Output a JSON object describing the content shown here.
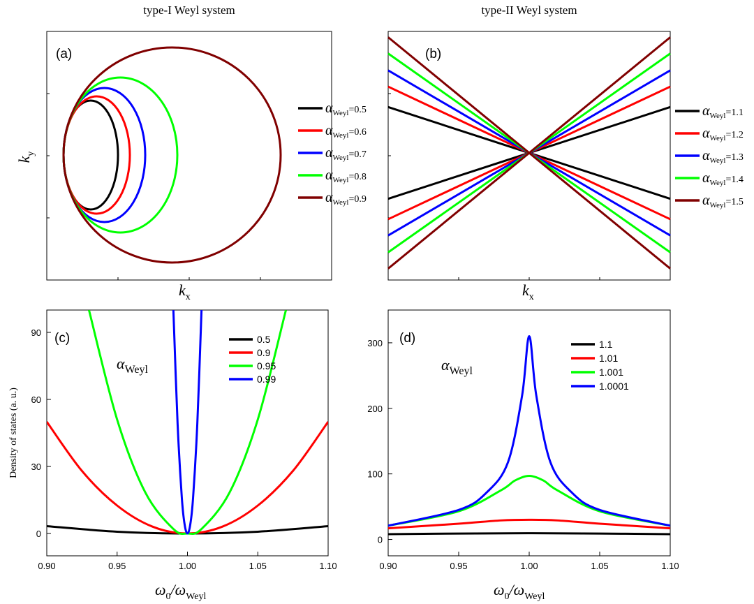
{
  "column_titles": {
    "left": "type-I Weyl system",
    "right": "type-II Weyl system"
  },
  "colors": {
    "black": "#000000",
    "red": "#ff0000",
    "blue": "#0000ff",
    "green": "#00ff00",
    "darkred": "#800000",
    "navy": "#000080"
  },
  "chart_data": [
    {
      "panel": "(a)",
      "type": "line",
      "curve_kind": "ellipse",
      "xlabel_main": "k",
      "xlabel_sub": "x",
      "ylabel_main": "k",
      "ylabel_sub": "y",
      "x_ticks_labeled": false,
      "y_ticks_labeled": false,
      "legend_symbol": "α",
      "legend_sub": "Weyl",
      "legend_placement": "right",
      "series": [
        {
          "name": "=0.5",
          "alpha": 0.5,
          "color": "#000000"
        },
        {
          "name": "=0.6",
          "alpha": 0.6,
          "color": "#ff0000"
        },
        {
          "name": "=0.7",
          "alpha": 0.7,
          "color": "#0000ff"
        },
        {
          "name": "=0.8",
          "alpha": 0.8,
          "color": "#00ff00"
        },
        {
          "name": "=0.9",
          "alpha": 0.9,
          "color": "#800000"
        }
      ]
    },
    {
      "panel": "(b)",
      "type": "line",
      "curve_kind": "hyperbola-asymptotes",
      "xlabel_main": "k",
      "xlabel_sub": "x",
      "x_ticks_labeled": false,
      "y_ticks_labeled": false,
      "legend_symbol": "α",
      "legend_sub": "Weyl",
      "legend_placement": "right",
      "series": [
        {
          "name": "=1.1",
          "alpha": 1.1,
          "color": "#000000"
        },
        {
          "name": "=1.2",
          "alpha": 1.2,
          "color": "#ff0000"
        },
        {
          "name": "=1.3",
          "alpha": 1.3,
          "color": "#0000ff"
        },
        {
          "name": "=1.4",
          "alpha": 1.4,
          "color": "#00ff00"
        },
        {
          "name": "=1.5",
          "alpha": 1.5,
          "color": "#800000"
        }
      ]
    },
    {
      "panel": "(c)",
      "type": "line",
      "xlabel": "ω0/ωWeyl",
      "xlabel_symbol": "ω",
      "xlabel_sub0": "0",
      "xlabel_sep": "/",
      "xlabel_sub1": "Weyl",
      "ylabel": "Density of states (a. u.)",
      "xlim": [
        0.9,
        1.1
      ],
      "ylim": [
        -10,
        100
      ],
      "x_ticks": [
        "0.90",
        "0.95",
        "1.00",
        "1.05",
        "1.10"
      ],
      "y_ticks": [
        "0",
        "30",
        "60",
        "90"
      ],
      "annotation_symbol": "α",
      "annotation_sub": "Weyl",
      "legend_placement": "top-right",
      "series": [
        {
          "name": "0.5",
          "color": "#000000",
          "x": [
            0.9,
            0.95,
            1.0,
            1.05,
            1.1
          ],
          "y": [
            3.3,
            0.8,
            0,
            0.8,
            3.3
          ]
        },
        {
          "name": "0.9",
          "color": "#ff0000",
          "x": [
            0.9,
            0.925,
            0.95,
            0.975,
            1.0,
            1.025,
            1.05,
            1.075,
            1.1
          ],
          "y": [
            50,
            28,
            12.5,
            3.1,
            0,
            3.1,
            12.5,
            28,
            50
          ]
        },
        {
          "name": "0.95",
          "color": "#00ff00",
          "x": [
            0.93,
            0.95,
            0.97,
            0.99,
            1.0,
            1.01,
            1.03,
            1.05,
            1.07
          ],
          "y": [
            100,
            51,
            18.4,
            2,
            0,
            2,
            18.4,
            51,
            100
          ]
        },
        {
          "name": "0.99",
          "color": "#0000ff",
          "x": [
            0.99,
            0.993,
            0.996,
            0.998,
            1.0,
            1.002,
            1.004,
            1.007,
            1.01
          ],
          "y": [
            100,
            49,
            16,
            4,
            0,
            4,
            16,
            49,
            100
          ]
        }
      ]
    },
    {
      "panel": "(d)",
      "type": "line",
      "xlabel": "ω0/ωWeyl",
      "xlabel_symbol": "ω",
      "xlabel_sub0": "0",
      "xlabel_sep": "/",
      "xlabel_sub1": "Weyl",
      "xlim": [
        0.9,
        1.1
      ],
      "ylim": [
        -25,
        350
      ],
      "x_ticks": [
        "0.90",
        "0.95",
        "1.00",
        "1.05",
        "1.10"
      ],
      "y_ticks": [
        "0",
        "100",
        "200",
        "300"
      ],
      "annotation_symbol": "α",
      "annotation_sub": "Weyl",
      "legend_placement": "top-right",
      "series": [
        {
          "name": "1.1",
          "color": "#000000",
          "x": [
            0.9,
            0.95,
            1.0,
            1.05,
            1.1
          ],
          "y": [
            8,
            9,
            9.5,
            9,
            8
          ]
        },
        {
          "name": "1.01",
          "color": "#ff0000",
          "x": [
            0.9,
            0.95,
            0.98,
            1.0,
            1.02,
            1.05,
            1.1
          ],
          "y": [
            17,
            24,
            29,
            30,
            29,
            24,
            17
          ]
        },
        {
          "name": "1.001",
          "color": "#00ff00",
          "x": [
            0.9,
            0.95,
            0.98,
            0.99,
            1.0,
            1.01,
            1.02,
            1.05,
            1.1
          ],
          "y": [
            21,
            43,
            75,
            90,
            97,
            90,
            75,
            43,
            21
          ]
        },
        {
          "name": "1.0001",
          "color": "#0000ff",
          "x": [
            0.9,
            0.95,
            0.97,
            0.985,
            0.995,
            1.0,
            1.005,
            1.015,
            1.03,
            1.05,
            1.1
          ],
          "y": [
            21,
            45,
            72,
            118,
            220,
            310,
            220,
            118,
            72,
            45,
            21
          ]
        }
      ]
    }
  ]
}
